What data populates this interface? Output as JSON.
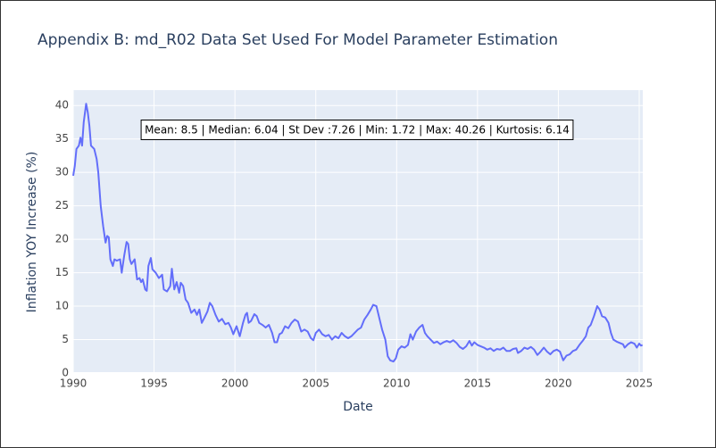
{
  "chart_data": {
    "type": "line",
    "title": "Appendix B: md_R02 Data Set Used For Model Parameter Estimation",
    "x_label": "Date",
    "y_label": "Inflation YOY Increase (%)",
    "annotation": "Mean: 8.5 | Median: 6.04 | St Dev :7.26 | Min: 1.72 | Max: 40.26 | Kurtosis: 6.14",
    "xlim": [
      1990,
      2025.22
    ],
    "xticks": [
      1990,
      1995,
      2000,
      2005,
      2010,
      2015,
      2020,
      2025
    ],
    "ylim": [
      0,
      42.3
    ],
    "yticks": [
      0,
      5,
      10,
      15,
      20,
      25,
      30,
      35,
      40
    ],
    "grid": true,
    "series": [
      {
        "name": "md_R02",
        "color": "#636efa",
        "x": [
          1990.0,
          1990.1,
          1990.2,
          1990.35,
          1990.45,
          1990.55,
          1990.65,
          1990.8,
          1990.9,
          1991.0,
          1991.1,
          1991.3,
          1991.45,
          1991.55,
          1991.7,
          1991.85,
          1992.0,
          1992.1,
          1992.2,
          1992.3,
          1992.45,
          1992.55,
          1992.7,
          1992.9,
          1993.0,
          1993.15,
          1993.3,
          1993.4,
          1993.5,
          1993.6,
          1993.8,
          1993.95,
          1994.1,
          1994.2,
          1994.3,
          1994.45,
          1994.55,
          1994.65,
          1994.8,
          1994.9,
          1995.1,
          1995.3,
          1995.5,
          1995.6,
          1995.8,
          1996.0,
          1996.1,
          1996.25,
          1996.4,
          1996.55,
          1996.65,
          1996.8,
          1996.95,
          1997.1,
          1997.3,
          1997.5,
          1997.65,
          1997.8,
          1997.95,
          1998.1,
          1998.3,
          1998.45,
          1998.6,
          1998.8,
          1999.0,
          1999.2,
          1999.4,
          1999.6,
          1999.75,
          1999.9,
          2000.1,
          2000.3,
          2000.5,
          2000.65,
          2000.75,
          2000.85,
          2001.0,
          2001.2,
          2001.35,
          2001.5,
          2001.7,
          2001.9,
          2002.1,
          2002.3,
          2002.45,
          2002.6,
          2002.75,
          2002.9,
          2003.1,
          2003.3,
          2003.5,
          2003.7,
          2003.9,
          2004.1,
          2004.3,
          2004.5,
          2004.7,
          2004.85,
          2005.0,
          2005.2,
          2005.4,
          2005.6,
          2005.8,
          2006.0,
          2006.2,
          2006.4,
          2006.6,
          2006.8,
          2007.0,
          2007.2,
          2007.4,
          2007.6,
          2007.8,
          2008.0,
          2008.2,
          2008.4,
          2008.55,
          2008.75,
          2008.9,
          2009.1,
          2009.3,
          2009.45,
          2009.6,
          2009.8,
          2009.95,
          2010.1,
          2010.3,
          2010.5,
          2010.7,
          2010.85,
          2011.0,
          2011.2,
          2011.4,
          2011.6,
          2011.75,
          2011.9,
          2012.1,
          2012.3,
          2012.5,
          2012.7,
          2012.9,
          2013.1,
          2013.3,
          2013.5,
          2013.7,
          2013.9,
          2014.1,
          2014.3,
          2014.5,
          2014.65,
          2014.8,
          2015.0,
          2015.2,
          2015.4,
          2015.6,
          2015.8,
          2016.0,
          2016.2,
          2016.4,
          2016.6,
          2016.8,
          2017.0,
          2017.2,
          2017.4,
          2017.5,
          2017.7,
          2017.9,
          2018.1,
          2018.3,
          2018.5,
          2018.7,
          2018.9,
          2019.1,
          2019.3,
          2019.5,
          2019.7,
          2019.9,
          2020.1,
          2020.3,
          2020.5,
          2020.7,
          2020.9,
          2021.1,
          2021.3,
          2021.5,
          2021.7,
          2021.85,
          2022.0,
          2022.2,
          2022.4,
          2022.55,
          2022.7,
          2022.9,
          2023.1,
          2023.25,
          2023.4,
          2023.6,
          2023.8,
          2024.0,
          2024.1,
          2024.3,
          2024.5,
          2024.7,
          2024.85,
          2025.0,
          2025.1,
          2025.2
        ],
        "values": [
          29.5,
          31,
          33.5,
          34,
          35.2,
          34,
          37.5,
          40.26,
          39,
          37,
          34,
          33.5,
          32,
          30,
          25,
          22,
          19.5,
          20.5,
          20.3,
          17,
          16,
          17,
          16.8,
          17,
          15,
          17.5,
          19.6,
          19.3,
          17,
          16.3,
          17,
          14,
          14.2,
          13.6,
          14,
          12.5,
          12.3,
          16,
          17.2,
          15.5,
          15,
          14.2,
          14.7,
          12.5,
          12.2,
          13,
          15.6,
          12.5,
          13.6,
          12,
          13.5,
          13,
          11,
          10.5,
          9,
          9.5,
          8.7,
          9.5,
          7.5,
          8.2,
          9.2,
          10.5,
          10,
          8.7,
          7.7,
          8.1,
          7.3,
          7.5,
          6.8,
          5.8,
          7,
          5.5,
          7.5,
          8.7,
          9,
          7.5,
          7.8,
          8.8,
          8.5,
          7.5,
          7.2,
          6.8,
          7.2,
          6,
          4.6,
          4.6,
          5.8,
          6,
          7,
          6.7,
          7.5,
          8,
          7.7,
          6.2,
          6.5,
          6.2,
          5.2,
          4.9,
          6,
          6.5,
          5.8,
          5.5,
          5.7,
          5,
          5.5,
          5.2,
          6,
          5.5,
          5.2,
          5.5,
          6,
          6.5,
          6.8,
          8,
          8.7,
          9.5,
          10.2,
          10,
          8.5,
          6.5,
          5,
          2.5,
          1.9,
          1.72,
          2.2,
          3.5,
          4,
          3.8,
          4.2,
          5.8,
          5,
          6.2,
          6.8,
          7.2,
          6,
          5.5,
          5,
          4.5,
          4.7,
          4.3,
          4.6,
          4.8,
          4.6,
          4.9,
          4.5,
          3.9,
          3.6,
          4,
          4.8,
          4.1,
          4.6,
          4.2,
          4,
          3.8,
          3.5,
          3.7,
          3.3,
          3.6,
          3.5,
          3.8,
          3.3,
          3.3,
          3.6,
          3.7,
          3.0,
          3.3,
          3.8,
          3.6,
          3.9,
          3.5,
          2.7,
          3.2,
          3.8,
          3.2,
          2.8,
          3.3,
          3.5,
          3.2,
          1.9,
          2.6,
          2.8,
          3.3,
          3.5,
          4.2,
          4.8,
          5.5,
          6.8,
          7.2,
          8.5,
          10,
          9.5,
          8.5,
          8.3,
          7.5,
          6,
          5,
          4.7,
          4.5,
          4.3,
          3.8,
          4.3,
          4.6,
          4.4,
          3.8,
          4.4,
          4.1,
          4.2
        ]
      }
    ]
  }
}
